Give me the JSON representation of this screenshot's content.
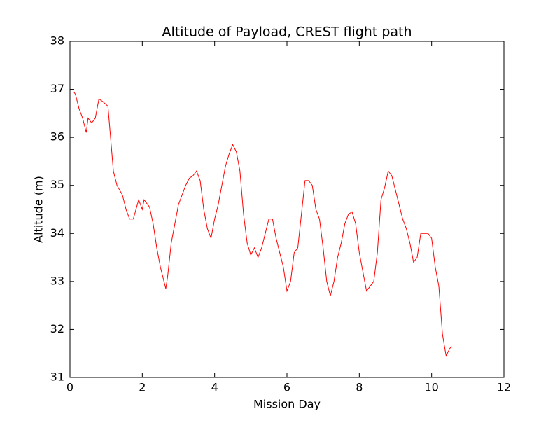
{
  "chart_data": {
    "type": "line",
    "title": "Altitude of Payload, CREST flight path",
    "xlabel": "Mission Day",
    "ylabel": "Altitude (m)",
    "x": [
      0.1,
      0.15,
      0.25,
      0.35,
      0.45,
      0.5,
      0.6,
      0.7,
      0.8,
      0.9,
      1.05,
      1.1,
      1.2,
      1.3,
      1.45,
      1.55,
      1.65,
      1.75,
      1.9,
      2.0,
      2.05,
      2.2,
      2.3,
      2.4,
      2.5,
      2.6,
      2.65,
      2.7,
      2.8,
      2.9,
      3.0,
      3.1,
      3.2,
      3.3,
      3.4,
      3.5,
      3.6,
      3.7,
      3.8,
      3.9,
      4.0,
      4.1,
      4.2,
      4.3,
      4.4,
      4.5,
      4.6,
      4.7,
      4.8,
      4.9,
      5.0,
      5.1,
      5.2,
      5.3,
      5.4,
      5.5,
      5.6,
      5.7,
      5.8,
      5.9,
      6.0,
      6.1,
      6.2,
      6.3,
      6.4,
      6.5,
      6.6,
      6.7,
      6.8,
      6.9,
      7.0,
      7.1,
      7.2,
      7.3,
      7.4,
      7.5,
      7.6,
      7.7,
      7.8,
      7.9,
      8.0,
      8.1,
      8.2,
      8.3,
      8.4,
      8.5,
      8.6,
      8.7,
      8.8,
      8.9,
      9.0,
      9.1,
      9.2,
      9.3,
      9.4,
      9.5,
      9.6,
      9.7,
      9.8,
      9.9,
      10.0,
      10.1,
      10.2,
      10.3,
      10.4,
      10.5,
      10.55
    ],
    "series": [
      {
        "name": "Altitude",
        "color": "#ff0000",
        "values": [
          36.95,
          36.9,
          36.6,
          36.4,
          36.1,
          36.4,
          36.3,
          36.4,
          36.8,
          36.75,
          36.65,
          36.2,
          35.3,
          35.0,
          34.8,
          34.5,
          34.3,
          34.3,
          34.7,
          34.5,
          34.7,
          34.55,
          34.2,
          33.7,
          33.3,
          33.0,
          32.85,
          33.1,
          33.8,
          34.2,
          34.6,
          34.8,
          35.0,
          35.15,
          35.2,
          35.3,
          35.1,
          34.5,
          34.1,
          33.9,
          34.3,
          34.6,
          35.0,
          35.4,
          35.65,
          35.85,
          35.7,
          35.3,
          34.4,
          33.8,
          33.55,
          33.7,
          33.5,
          33.7,
          34.0,
          34.3,
          34.3,
          33.9,
          33.6,
          33.3,
          32.8,
          33.0,
          33.6,
          33.7,
          34.4,
          35.1,
          35.1,
          35.0,
          34.5,
          34.3,
          33.7,
          33.0,
          32.7,
          33.0,
          33.5,
          33.8,
          34.2,
          34.4,
          34.45,
          34.2,
          33.6,
          33.2,
          32.8,
          32.9,
          33.0,
          33.6,
          34.7,
          34.95,
          35.3,
          35.2,
          34.9,
          34.6,
          34.3,
          34.1,
          33.8,
          33.4,
          33.5,
          34.0,
          34.0,
          34.0,
          33.9,
          33.3,
          32.9,
          31.9,
          31.45,
          31.6,
          31.65
        ]
      }
    ],
    "xlim": [
      0,
      12
    ],
    "xticks": [
      0,
      2,
      4,
      6,
      8,
      10,
      12
    ],
    "ylim": [
      31,
      38
    ],
    "yticks": [
      31,
      32,
      33,
      34,
      35,
      36,
      37,
      38
    ]
  }
}
